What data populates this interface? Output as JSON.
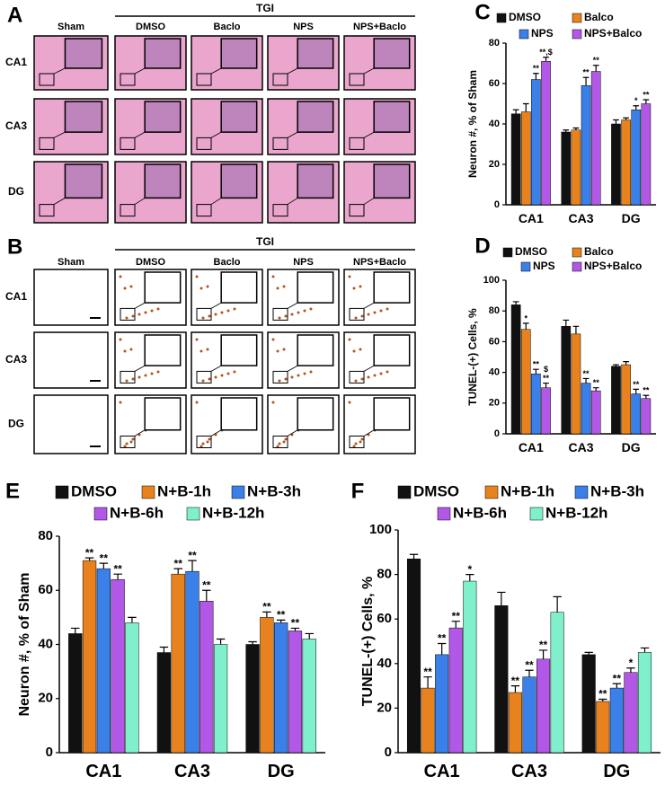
{
  "micrographs": [
    {
      "panel_label": "A",
      "group_label": "TGI",
      "columns": [
        "Sham",
        "DMSO",
        "Baclo",
        "NPS",
        "NPS+Baclo"
      ],
      "rows": [
        "CA1",
        "CA3",
        "DG"
      ]
    },
    {
      "panel_label": "B",
      "group_label": "TGI",
      "columns": [
        "Sham",
        "DMSO",
        "Baclo",
        "NPS",
        "NPS+Baclo"
      ],
      "rows": [
        "CA1",
        "CA3",
        "DG"
      ]
    }
  ],
  "chart_data": [
    {
      "type": "bar",
      "panel_label": "C",
      "ylabel": "Neuron #, % of Sham",
      "categories": [
        "CA1",
        "CA3",
        "DG"
      ],
      "ylim": [
        0,
        80
      ],
      "yticks": [
        0,
        20,
        40,
        60,
        80
      ],
      "series": [
        {
          "name": "DMSO",
          "color": "#111111",
          "values": [
            45,
            36,
            40
          ],
          "errors": [
            2,
            1,
            2
          ],
          "annotations": [
            null,
            null,
            null
          ]
        },
        {
          "name": "Balco",
          "color": "#e8821e",
          "values": [
            46,
            37,
            42
          ],
          "errors": [
            4,
            1,
            1
          ],
          "annotations": [
            null,
            null,
            null
          ]
        },
        {
          "name": "NPS",
          "color": "#3b7fe8",
          "values": [
            62,
            59,
            47
          ],
          "errors": [
            3,
            4,
            2
          ],
          "annotations": [
            [
              "**"
            ],
            [
              "**"
            ],
            [
              "*"
            ]
          ]
        },
        {
          "name": "NPS+Balco",
          "color": "#b158e6",
          "values": [
            71,
            66,
            50
          ],
          "errors": [
            2,
            3,
            2
          ],
          "annotations": [
            [
              "**,$"
            ],
            [
              "**"
            ],
            [
              "**"
            ]
          ]
        }
      ]
    },
    {
      "type": "bar",
      "panel_label": "D",
      "ylabel": "TUNEL-(+) Cells, %",
      "categories": [
        "CA1",
        "CA3",
        "DG"
      ],
      "ylim": [
        0,
        100
      ],
      "yticks": [
        0,
        20,
        40,
        60,
        80,
        100
      ],
      "series": [
        {
          "name": "DMSO",
          "color": "#111111",
          "values": [
            84,
            70,
            44
          ],
          "errors": [
            2,
            4,
            1
          ],
          "annotations": [
            null,
            null,
            null
          ]
        },
        {
          "name": "Balco",
          "color": "#e8821e",
          "values": [
            68,
            65,
            45
          ],
          "errors": [
            4,
            5,
            2
          ],
          "annotations": [
            [
              "*"
            ],
            null,
            null
          ]
        },
        {
          "name": "NPS",
          "color": "#3b7fe8",
          "values": [
            39,
            33,
            26
          ],
          "errors": [
            3,
            3,
            3
          ],
          "annotations": [
            [
              "**"
            ],
            [
              "**"
            ],
            [
              "**"
            ]
          ]
        },
        {
          "name": "NPS+Balco",
          "color": "#b158e6",
          "values": [
            30,
            28,
            23
          ],
          "errors": [
            3,
            2,
            2
          ],
          "annotations": [
            [
              "**",
              "$"
            ],
            [
              "**"
            ],
            [
              "**"
            ]
          ]
        }
      ]
    },
    {
      "type": "bar",
      "panel_label": "E",
      "ylabel": "Neuron #, % of Sham",
      "categories": [
        "CA1",
        "CA3",
        "DG"
      ],
      "ylim": [
        0,
        80
      ],
      "yticks": [
        0,
        20,
        40,
        60,
        80
      ],
      "series": [
        {
          "name": "DMSO",
          "color": "#111111",
          "values": [
            44,
            37,
            40
          ],
          "errors": [
            2,
            2,
            1
          ],
          "annotations": [
            null,
            null,
            null
          ]
        },
        {
          "name": "N+B-1h",
          "color": "#e8821e",
          "values": [
            71,
            66,
            50
          ],
          "errors": [
            1,
            2,
            2
          ],
          "annotations": [
            [
              "**"
            ],
            [
              "**"
            ],
            [
              "**"
            ]
          ]
        },
        {
          "name": "N+B-3h",
          "color": "#3b7fe8",
          "values": [
            68,
            67,
            48
          ],
          "errors": [
            2,
            4,
            1
          ],
          "annotations": [
            [
              "**"
            ],
            [
              "**"
            ],
            [
              "**"
            ]
          ]
        },
        {
          "name": "N+B-6h",
          "color": "#b158e6",
          "values": [
            64,
            56,
            45
          ],
          "errors": [
            2,
            4,
            1
          ],
          "annotations": [
            [
              "**"
            ],
            [
              "**"
            ],
            [
              "**"
            ]
          ]
        },
        {
          "name": "N+B-12h",
          "color": "#80f0cc",
          "values": [
            48,
            40,
            42
          ],
          "errors": [
            2,
            2,
            2
          ],
          "annotations": [
            null,
            null,
            null
          ]
        }
      ]
    },
    {
      "type": "bar",
      "panel_label": "F",
      "ylabel": "TUNEL-(+) Cells, %",
      "categories": [
        "CA1",
        "CA3",
        "DG"
      ],
      "ylim": [
        0,
        100
      ],
      "yticks": [
        0,
        20,
        40,
        60,
        80,
        100
      ],
      "series": [
        {
          "name": "DMSO",
          "color": "#111111",
          "values": [
            87,
            66,
            44
          ],
          "errors": [
            2,
            6,
            1
          ],
          "annotations": [
            null,
            null,
            null
          ]
        },
        {
          "name": "N+B-1h",
          "color": "#e8821e",
          "values": [
            29,
            27,
            23
          ],
          "errors": [
            5,
            3,
            1
          ],
          "annotations": [
            [
              "**"
            ],
            [
              "**"
            ],
            [
              "**"
            ]
          ]
        },
        {
          "name": "N+B-3h",
          "color": "#3b7fe8",
          "values": [
            44,
            34,
            29
          ],
          "errors": [
            5,
            3,
            2
          ],
          "annotations": [
            [
              "**"
            ],
            [
              "**"
            ],
            [
              "**"
            ]
          ]
        },
        {
          "name": "N+B-6h",
          "color": "#b158e6",
          "values": [
            56,
            42,
            36
          ],
          "errors": [
            3,
            4,
            2
          ],
          "annotations": [
            [
              "**"
            ],
            [
              "**"
            ],
            [
              "*"
            ]
          ]
        },
        {
          "name": "N+B-12h",
          "color": "#80f0cc",
          "values": [
            77,
            63,
            45
          ],
          "errors": [
            3,
            7,
            2
          ],
          "annotations": [
            [
              "*"
            ],
            null,
            null
          ]
        }
      ]
    }
  ]
}
